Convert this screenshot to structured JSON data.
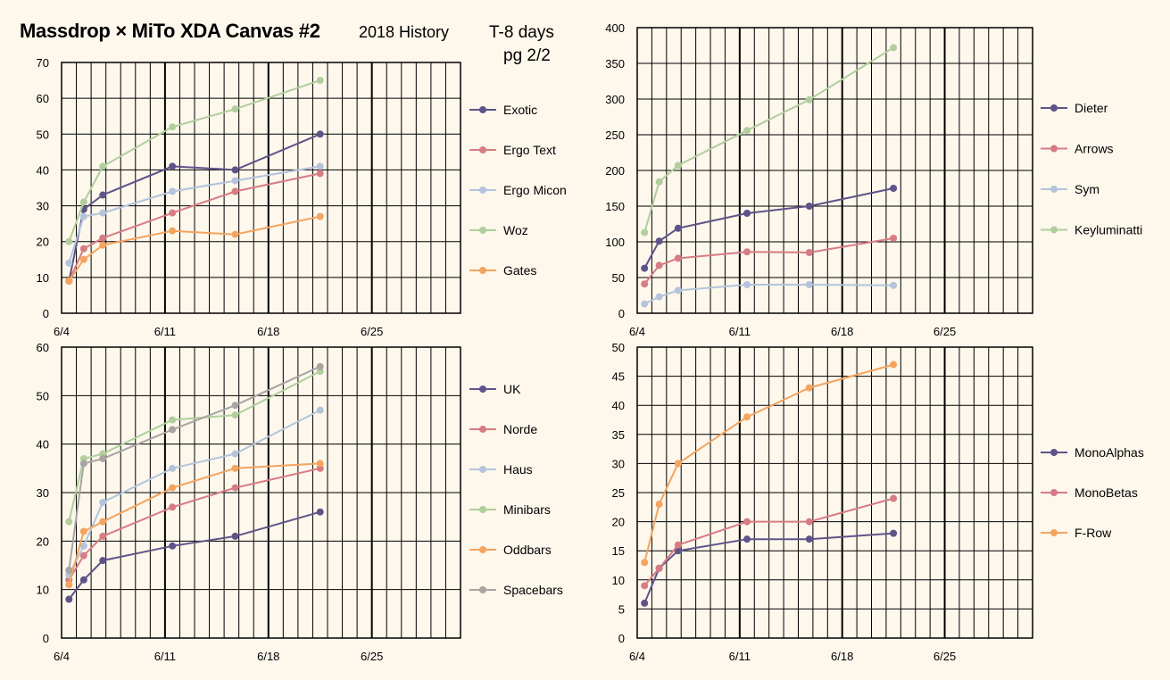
{
  "header": {
    "title": "Massdrop × MiTo XDA Canvas #2",
    "subtitle": "2018 History",
    "countdown": "T-8 days",
    "page": "pg 2/2"
  },
  "colors": {
    "background": "#fdf7ec",
    "purple": "#5e5488",
    "red": "#d77c84",
    "lightblue": "#b4c4dc",
    "green": "#b0cf9c",
    "orange": "#f4a45e",
    "gray": "#a8a4a2"
  },
  "chart_data": [
    {
      "type": "line",
      "x_ticks": [
        "6/4",
        "6/11",
        "6/18",
        "6/25"
      ],
      "xlim": [
        "6/4",
        "7/1"
      ],
      "ylim": [
        0,
        70
      ],
      "y_ticks": [
        0,
        10,
        20,
        30,
        40,
        50,
        60,
        70
      ],
      "grid": true,
      "legend": "right",
      "series": [
        {
          "name": "Exotic",
          "color": "#5e5488",
          "points": [
            [
              "6/4 12:00",
              9
            ],
            [
              "6/5 12:00",
              29
            ],
            [
              "6/6 19:00",
              33
            ],
            [
              "6/11 12:00",
              41
            ],
            [
              "6/15 18:00",
              40
            ],
            [
              "6/21 12:00",
              50
            ]
          ]
        },
        {
          "name": "Ergo Text",
          "color": "#d77c84",
          "points": [
            [
              "6/4 12:00",
              9
            ],
            [
              "6/5 12:00",
              18
            ],
            [
              "6/6 19:00",
              21
            ],
            [
              "6/11 12:00",
              28
            ],
            [
              "6/15 18:00",
              34
            ],
            [
              "6/21 12:00",
              39
            ]
          ]
        },
        {
          "name": "Ergo Micon",
          "color": "#b4c4dc",
          "points": [
            [
              "6/4 12:00",
              14
            ],
            [
              "6/5 12:00",
              27
            ],
            [
              "6/6 19:00",
              28
            ],
            [
              "6/11 12:00",
              34
            ],
            [
              "6/15 18:00",
              37
            ],
            [
              "6/21 12:00",
              41
            ]
          ]
        },
        {
          "name": "Woz",
          "color": "#b0cf9c",
          "points": [
            [
              "6/4 12:00",
              20
            ],
            [
              "6/5 12:00",
              31
            ],
            [
              "6/6 19:00",
              41
            ],
            [
              "6/11 12:00",
              52
            ],
            [
              "6/15 18:00",
              57
            ],
            [
              "6/21 12:00",
              65
            ]
          ]
        },
        {
          "name": "Gates",
          "color": "#f4a45e",
          "points": [
            [
              "6/4 12:00",
              9
            ],
            [
              "6/5 12:00",
              15
            ],
            [
              "6/6 19:00",
              19
            ],
            [
              "6/11 12:00",
              23
            ],
            [
              "6/15 18:00",
              22
            ],
            [
              "6/21 12:00",
              27
            ]
          ]
        }
      ]
    },
    {
      "type": "line",
      "x_ticks": [
        "6/4",
        "6/11",
        "6/18",
        "6/25"
      ],
      "xlim": [
        "6/4",
        "7/1"
      ],
      "ylim": [
        0,
        400
      ],
      "y_ticks": [
        0,
        50,
        100,
        150,
        200,
        250,
        300,
        350,
        400
      ],
      "grid": true,
      "legend": "right",
      "series": [
        {
          "name": "Dieter",
          "color": "#5e5488",
          "points": [
            [
              "6/4 12:00",
              63
            ],
            [
              "6/5 12:00",
              101
            ],
            [
              "6/6 19:00",
              119
            ],
            [
              "6/11 12:00",
              140
            ],
            [
              "6/15 18:00",
              150
            ],
            [
              "6/21 12:00",
              175
            ]
          ]
        },
        {
          "name": "Arrows",
          "color": "#d77c84",
          "points": [
            [
              "6/4 12:00",
              41
            ],
            [
              "6/5 12:00",
              67
            ],
            [
              "6/6 19:00",
              77
            ],
            [
              "6/11 12:00",
              86
            ],
            [
              "6/15 18:00",
              85
            ],
            [
              "6/21 12:00",
              105
            ]
          ]
        },
        {
          "name": "Sym",
          "color": "#b4c4dc",
          "points": [
            [
              "6/4 12:00",
              13
            ],
            [
              "6/5 12:00",
              23
            ],
            [
              "6/6 19:00",
              32
            ],
            [
              "6/11 12:00",
              40
            ],
            [
              "6/15 18:00",
              40
            ],
            [
              "6/21 12:00",
              39
            ]
          ]
        },
        {
          "name": "Keyluminatti",
          "color": "#b0cf9c",
          "points": [
            [
              "6/4 12:00",
              113
            ],
            [
              "6/5 12:00",
              184
            ],
            [
              "6/6 19:00",
              207
            ],
            [
              "6/11 12:00",
              256
            ],
            [
              "6/15 18:00",
              299
            ],
            [
              "6/21 12:00",
              372
            ]
          ]
        }
      ]
    },
    {
      "type": "line",
      "x_ticks": [
        "6/4",
        "6/11",
        "6/18",
        "6/25"
      ],
      "xlim": [
        "6/4",
        "7/1"
      ],
      "ylim": [
        0,
        60
      ],
      "y_ticks": [
        0,
        10,
        20,
        30,
        40,
        50,
        60
      ],
      "grid": true,
      "legend": "right",
      "series": [
        {
          "name": "UK",
          "color": "#5e5488",
          "points": [
            [
              "6/4 12:00",
              8
            ],
            [
              "6/5 12:00",
              12
            ],
            [
              "6/6 19:00",
              16
            ],
            [
              "6/11 12:00",
              19
            ],
            [
              "6/15 18:00",
              21
            ],
            [
              "6/21 12:00",
              26
            ]
          ]
        },
        {
          "name": "Norde",
          "color": "#d77c84",
          "points": [
            [
              "6/4 12:00",
              12
            ],
            [
              "6/5 12:00",
              17
            ],
            [
              "6/6 19:00",
              21
            ],
            [
              "6/11 12:00",
              27
            ],
            [
              "6/15 18:00",
              31
            ],
            [
              "6/21 12:00",
              35
            ]
          ]
        },
        {
          "name": "Haus",
          "color": "#b4c4dc",
          "points": [
            [
              "6/4 12:00",
              13
            ],
            [
              "6/5 12:00",
              19
            ],
            [
              "6/6 19:00",
              28
            ],
            [
              "6/11 12:00",
              35
            ],
            [
              "6/15 18:00",
              38
            ],
            [
              "6/21 12:00",
              47
            ]
          ]
        },
        {
          "name": "Minibars",
          "color": "#b0cf9c",
          "points": [
            [
              "6/4 12:00",
              24
            ],
            [
              "6/5 12:00",
              37
            ],
            [
              "6/6 19:00",
              38
            ],
            [
              "6/11 12:00",
              45
            ],
            [
              "6/15 18:00",
              46
            ],
            [
              "6/21 12:00",
              55
            ]
          ]
        },
        {
          "name": "Oddbars",
          "color": "#f4a45e",
          "points": [
            [
              "6/4 12:00",
              11
            ],
            [
              "6/5 12:00",
              22
            ],
            [
              "6/6 19:00",
              24
            ],
            [
              "6/11 12:00",
              31
            ],
            [
              "6/15 18:00",
              35
            ],
            [
              "6/21 12:00",
              36
            ]
          ]
        },
        {
          "name": "Spacebars",
          "color": "#a8a4a2",
          "points": [
            [
              "6/4 12:00",
              14
            ],
            [
              "6/5 12:00",
              36
            ],
            [
              "6/6 19:00",
              37
            ],
            [
              "6/11 12:00",
              43
            ],
            [
              "6/15 18:00",
              48
            ],
            [
              "6/21 12:00",
              56
            ]
          ]
        }
      ]
    },
    {
      "type": "line",
      "x_ticks": [
        "6/4",
        "6/11",
        "6/18",
        "6/25"
      ],
      "xlim": [
        "6/4",
        "7/1"
      ],
      "ylim": [
        0,
        50
      ],
      "y_ticks": [
        0,
        5,
        10,
        15,
        20,
        25,
        30,
        35,
        40,
        45,
        50
      ],
      "grid": true,
      "legend": "right",
      "series": [
        {
          "name": "MonoAlphas",
          "color": "#5e5488",
          "points": [
            [
              "6/4 12:00",
              6
            ],
            [
              "6/5 12:00",
              12
            ],
            [
              "6/6 19:00",
              15
            ],
            [
              "6/11 12:00",
              17
            ],
            [
              "6/15 18:00",
              17
            ],
            [
              "6/21 12:00",
              18
            ]
          ]
        },
        {
          "name": "MonoBetas",
          "color": "#d77c84",
          "points": [
            [
              "6/4 12:00",
              9
            ],
            [
              "6/5 12:00",
              12
            ],
            [
              "6/6 19:00",
              16
            ],
            [
              "6/11 12:00",
              20
            ],
            [
              "6/15 18:00",
              20
            ],
            [
              "6/21 12:00",
              24
            ]
          ]
        },
        {
          "name": "F-Row",
          "color": "#f4a45e",
          "points": [
            [
              "6/4 12:00",
              13
            ],
            [
              "6/5 12:00",
              23
            ],
            [
              "6/6 19:00",
              30
            ],
            [
              "6/11 12:00",
              38
            ],
            [
              "6/15 18:00",
              43
            ],
            [
              "6/21 12:00",
              47
            ]
          ]
        }
      ]
    }
  ]
}
